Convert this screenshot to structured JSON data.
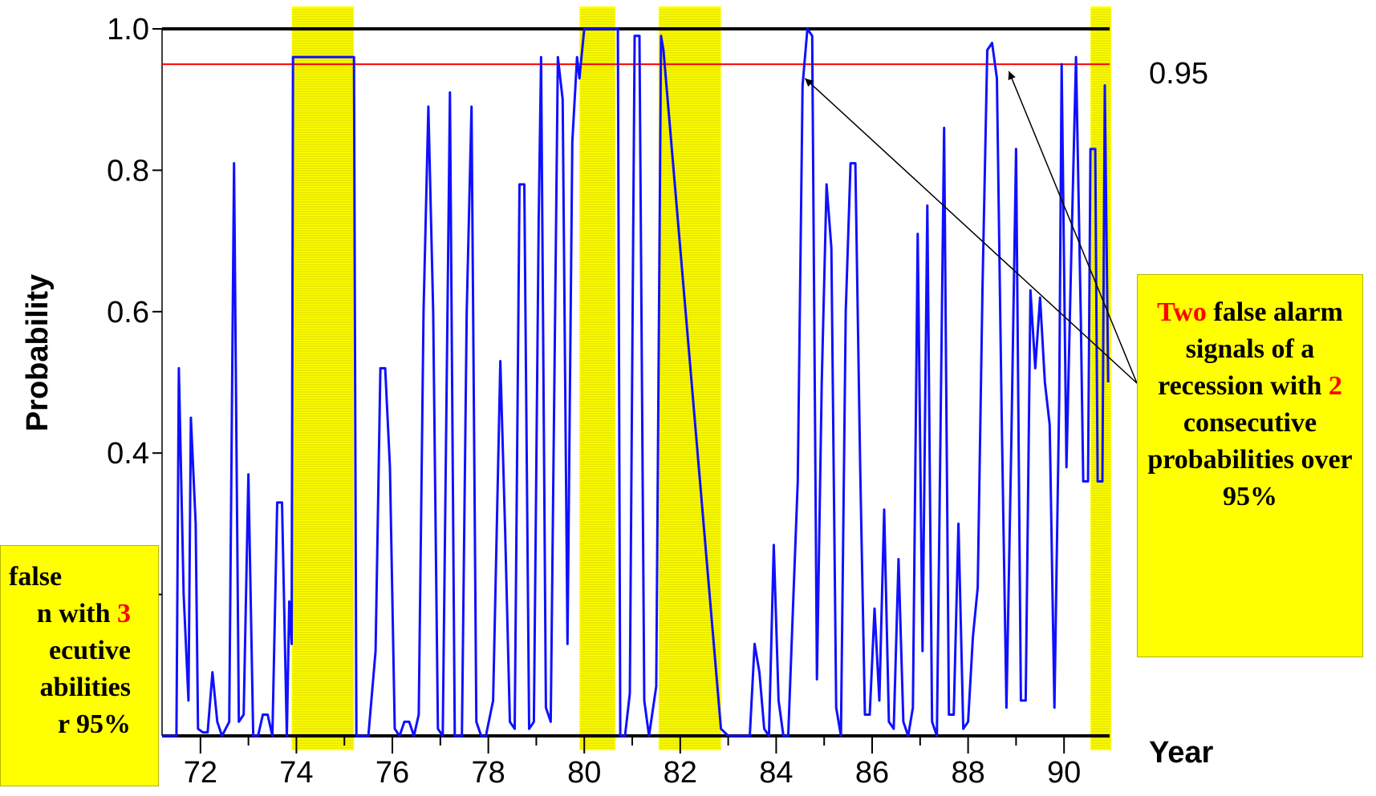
{
  "chart_data": {
    "type": "line",
    "ylabel": "Probability",
    "xlabel": "Year",
    "xlim": [
      71.2,
      90.95
    ],
    "ylim": [
      0.0,
      1.0
    ],
    "x_ticks": [
      72,
      74,
      76,
      78,
      80,
      82,
      84,
      86,
      88,
      90
    ],
    "x_tick_labels": [
      "72",
      "74",
      "76",
      "78",
      "80",
      "82",
      "84",
      "86",
      "88",
      "90"
    ],
    "y_ticks": [
      0.2,
      0.4,
      0.6,
      0.8,
      1.0
    ],
    "y_tick_labels": [
      "",
      "0.4",
      "0.6",
      "0.8",
      "1.0"
    ],
    "threshold": {
      "value": 0.95,
      "label": "0.95",
      "color": "#ff0000"
    },
    "recessions": [
      [
        73.9,
        75.2
      ],
      [
        79.9,
        80.65
      ],
      [
        81.55,
        82.85
      ],
      [
        90.55,
        91.0
      ]
    ],
    "recession_color": "#ffff00",
    "series": [
      {
        "color": "#1010ff",
        "points": [
          [
            71.2,
            0.0
          ],
          [
            71.3,
            0.0
          ],
          [
            71.5,
            0.0
          ],
          [
            71.55,
            0.52
          ],
          [
            71.65,
            0.2
          ],
          [
            71.75,
            0.05
          ],
          [
            71.8,
            0.45
          ],
          [
            71.9,
            0.3
          ],
          [
            71.95,
            0.01
          ],
          [
            72.05,
            0.005
          ],
          [
            72.15,
            0.005
          ],
          [
            72.25,
            0.09
          ],
          [
            72.35,
            0.02
          ],
          [
            72.45,
            0.0
          ],
          [
            72.6,
            0.02
          ],
          [
            72.7,
            0.81
          ],
          [
            72.8,
            0.02
          ],
          [
            72.9,
            0.03
          ],
          [
            73.0,
            0.37
          ],
          [
            73.1,
            0.0
          ],
          [
            73.2,
            0.0
          ],
          [
            73.3,
            0.03
          ],
          [
            73.4,
            0.03
          ],
          [
            73.5,
            0.0
          ],
          [
            73.6,
            0.33
          ],
          [
            73.7,
            0.33
          ],
          [
            73.8,
            0.0
          ],
          [
            73.85,
            0.19
          ],
          [
            73.9,
            0.13
          ],
          [
            73.93,
            0.96
          ],
          [
            75.2,
            0.96
          ],
          [
            75.25,
            0.0
          ],
          [
            75.5,
            0.0
          ],
          [
            75.65,
            0.12
          ],
          [
            75.75,
            0.52
          ],
          [
            75.85,
            0.52
          ],
          [
            75.95,
            0.38
          ],
          [
            76.05,
            0.01
          ],
          [
            76.15,
            0.0
          ],
          [
            76.25,
            0.02
          ],
          [
            76.35,
            0.02
          ],
          [
            76.45,
            0.0
          ],
          [
            76.55,
            0.03
          ],
          [
            76.65,
            0.6
          ],
          [
            76.75,
            0.89
          ],
          [
            76.85,
            0.6
          ],
          [
            76.95,
            0.01
          ],
          [
            77.05,
            0.0
          ],
          [
            77.2,
            0.91
          ],
          [
            77.3,
            0.0
          ],
          [
            77.45,
            0.0
          ],
          [
            77.55,
            0.6
          ],
          [
            77.65,
            0.89
          ],
          [
            77.75,
            0.02
          ],
          [
            77.85,
            0.0
          ],
          [
            77.95,
            0.0
          ],
          [
            78.1,
            0.05
          ],
          [
            78.25,
            0.53
          ],
          [
            78.35,
            0.29
          ],
          [
            78.45,
            0.02
          ],
          [
            78.55,
            0.01
          ],
          [
            78.65,
            0.78
          ],
          [
            78.75,
            0.78
          ],
          [
            78.85,
            0.01
          ],
          [
            78.95,
            0.02
          ],
          [
            79.05,
            0.73
          ],
          [
            79.1,
            0.96
          ],
          [
            79.2,
            0.04
          ],
          [
            79.3,
            0.02
          ],
          [
            79.45,
            0.96
          ],
          [
            79.55,
            0.9
          ],
          [
            79.65,
            0.13
          ],
          [
            79.75,
            0.84
          ],
          [
            79.85,
            0.96
          ],
          [
            79.9,
            0.93
          ],
          [
            80.0,
            1.0
          ],
          [
            80.7,
            1.0
          ],
          [
            80.75,
            0.0
          ],
          [
            80.85,
            0.0
          ],
          [
            80.95,
            0.06
          ],
          [
            81.05,
            0.99
          ],
          [
            81.15,
            0.99
          ],
          [
            81.25,
            0.05
          ],
          [
            81.35,
            0.0
          ],
          [
            81.5,
            0.07
          ],
          [
            81.6,
            0.99
          ],
          [
            81.65,
            0.97
          ],
          [
            82.85,
            0.01
          ],
          [
            83.0,
            0.0
          ],
          [
            83.2,
            0.0
          ],
          [
            83.45,
            0.0
          ],
          [
            83.55,
            0.13
          ],
          [
            83.65,
            0.09
          ],
          [
            83.75,
            0.01
          ],
          [
            83.85,
            0.0
          ],
          [
            83.95,
            0.27
          ],
          [
            84.05,
            0.05
          ],
          [
            84.15,
            0.0
          ],
          [
            84.25,
            0.0
          ],
          [
            84.35,
            0.18
          ],
          [
            84.45,
            0.36
          ],
          [
            84.55,
            0.92
          ],
          [
            84.65,
            1.0
          ],
          [
            84.75,
            0.99
          ],
          [
            84.85,
            0.08
          ],
          [
            84.95,
            0.5
          ],
          [
            85.05,
            0.78
          ],
          [
            85.15,
            0.69
          ],
          [
            85.25,
            0.04
          ],
          [
            85.35,
            0.0
          ],
          [
            85.45,
            0.6
          ],
          [
            85.55,
            0.81
          ],
          [
            85.65,
            0.81
          ],
          [
            85.75,
            0.38
          ],
          [
            85.85,
            0.03
          ],
          [
            85.95,
            0.03
          ],
          [
            86.05,
            0.18
          ],
          [
            86.15,
            0.05
          ],
          [
            86.25,
            0.32
          ],
          [
            86.35,
            0.02
          ],
          [
            86.45,
            0.01
          ],
          [
            86.55,
            0.25
          ],
          [
            86.65,
            0.02
          ],
          [
            86.75,
            0.0
          ],
          [
            86.85,
            0.04
          ],
          [
            86.95,
            0.71
          ],
          [
            87.05,
            0.12
          ],
          [
            87.15,
            0.75
          ],
          [
            87.25,
            0.02
          ],
          [
            87.35,
            0.0
          ],
          [
            87.5,
            0.86
          ],
          [
            87.6,
            0.03
          ],
          [
            87.7,
            0.03
          ],
          [
            87.8,
            0.3
          ],
          [
            87.9,
            0.01
          ],
          [
            88.0,
            0.02
          ],
          [
            88.1,
            0.14
          ],
          [
            88.2,
            0.21
          ],
          [
            88.3,
            0.63
          ],
          [
            88.4,
            0.97
          ],
          [
            88.5,
            0.98
          ],
          [
            88.6,
            0.93
          ],
          [
            88.7,
            0.45
          ],
          [
            88.8,
            0.04
          ],
          [
            88.9,
            0.41
          ],
          [
            89.0,
            0.83
          ],
          [
            89.1,
            0.05
          ],
          [
            89.2,
            0.05
          ],
          [
            89.3,
            0.63
          ],
          [
            89.4,
            0.52
          ],
          [
            89.5,
            0.62
          ],
          [
            89.6,
            0.5
          ],
          [
            89.7,
            0.44
          ],
          [
            89.8,
            0.04
          ],
          [
            89.9,
            0.48
          ],
          [
            89.95,
            0.95
          ],
          [
            90.05,
            0.38
          ],
          [
            90.15,
            0.68
          ],
          [
            90.25,
            0.96
          ],
          [
            90.35,
            0.59
          ],
          [
            90.4,
            0.36
          ],
          [
            90.5,
            0.36
          ],
          [
            90.55,
            0.83
          ],
          [
            90.65,
            0.83
          ],
          [
            90.7,
            0.36
          ],
          [
            90.8,
            0.36
          ],
          [
            90.85,
            0.92
          ],
          [
            90.92,
            0.5
          ]
        ]
      }
    ],
    "annotations": [
      {
        "text_parts": [
          {
            "text": "Two",
            "highlight": true
          },
          {
            "text": " false alarm signals of a recession with ",
            "highlight": false
          },
          {
            "text": "2",
            "highlight": true
          },
          {
            "text": " consecutive probabilities over 95%",
            "highlight": false
          }
        ],
        "arrow_targets": [
          [
            84.6,
            0.93
          ],
          [
            88.85,
            0.94
          ]
        ]
      },
      {
        "text_parts": [
          {
            "text": "false",
            "highlight": false
          },
          {
            "text": "n with ",
            "highlight": false
          },
          {
            "text": "3",
            "highlight": true
          },
          {
            "text": "ecutive",
            "highlight": false
          },
          {
            "text": "abilities",
            "highlight": false
          },
          {
            "text": "r 95%",
            "highlight": false
          }
        ]
      }
    ]
  }
}
